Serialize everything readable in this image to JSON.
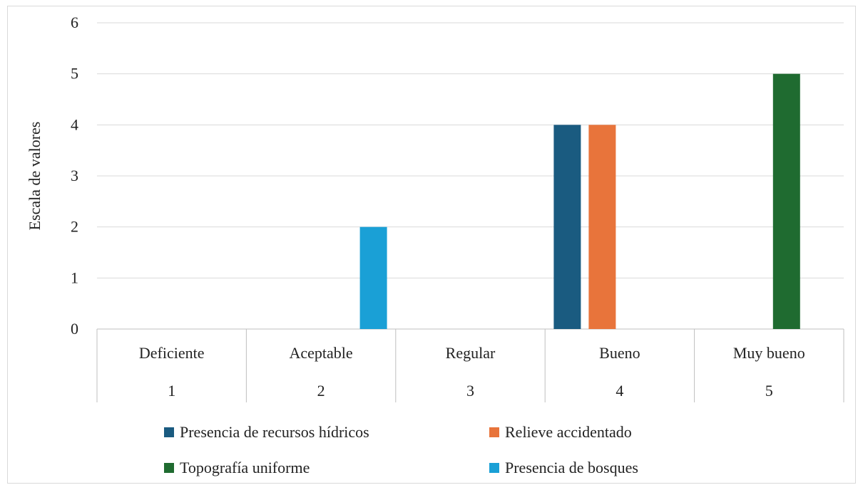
{
  "chart_data": {
    "type": "bar",
    "title": "",
    "ylabel": "Escala de valores",
    "xlabel": "",
    "ylim": [
      0,
      6
    ],
    "yticks": [
      "0",
      "1",
      "2",
      "3",
      "4",
      "5",
      "6"
    ],
    "grid": true,
    "legend_position": "bottom",
    "categories": [
      {
        "name": "Deficiente",
        "number": "1"
      },
      {
        "name": "Aceptable",
        "number": "2"
      },
      {
        "name": "Regular",
        "number": "3"
      },
      {
        "name": "Bueno",
        "number": "4"
      },
      {
        "name": "Muy bueno",
        "number": "5"
      }
    ],
    "series": [
      {
        "name": "Presencia de recursos hídricos",
        "color": "#1a5b80",
        "values": [
          null,
          null,
          null,
          4,
          null
        ]
      },
      {
        "name": "Relieve accidentado",
        "color": "#e8743b",
        "values": [
          null,
          null,
          null,
          4,
          null
        ]
      },
      {
        "name": "Topografía uniforme",
        "color": "#1f6b30",
        "values": [
          null,
          null,
          null,
          null,
          5
        ]
      },
      {
        "name": "Presencia de bosques",
        "color": "#1aa0d6",
        "values": [
          null,
          2,
          null,
          null,
          null
        ]
      }
    ]
  }
}
